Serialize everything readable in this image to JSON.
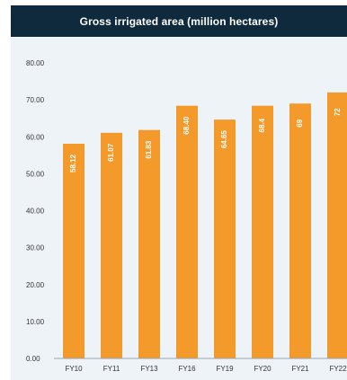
{
  "chart_data": {
    "type": "bar",
    "title": "Gross irrigated area (million hectares)",
    "xlabel": "",
    "ylabel": "",
    "categories": [
      "FY10",
      "FY11",
      "FY13",
      "FY16",
      "FY19",
      "FY20",
      "FY21",
      "FY22"
    ],
    "values": [
      58.12,
      61.07,
      61.83,
      68.4,
      64.65,
      68.4,
      69,
      72
    ],
    "data_labels": [
      "58.12",
      "61.07",
      "61.83",
      "68.40",
      "64.65",
      "68.4",
      "69",
      "72"
    ],
    "ylim": [
      0,
      80
    ],
    "y_ticks": [
      "0.00",
      "10.00",
      "20.00",
      "30.00",
      "40.00",
      "50.00",
      "60.00",
      "70.00",
      "80.00"
    ],
    "grid": false,
    "legend": "none",
    "colors": {
      "bar": "#f39a2b",
      "title_background": "#0f2a3d",
      "title_text": "#ffffff",
      "plot_background": "#eef3f8",
      "axis": "#9aa7b4",
      "data_label": "#ffffff"
    }
  }
}
